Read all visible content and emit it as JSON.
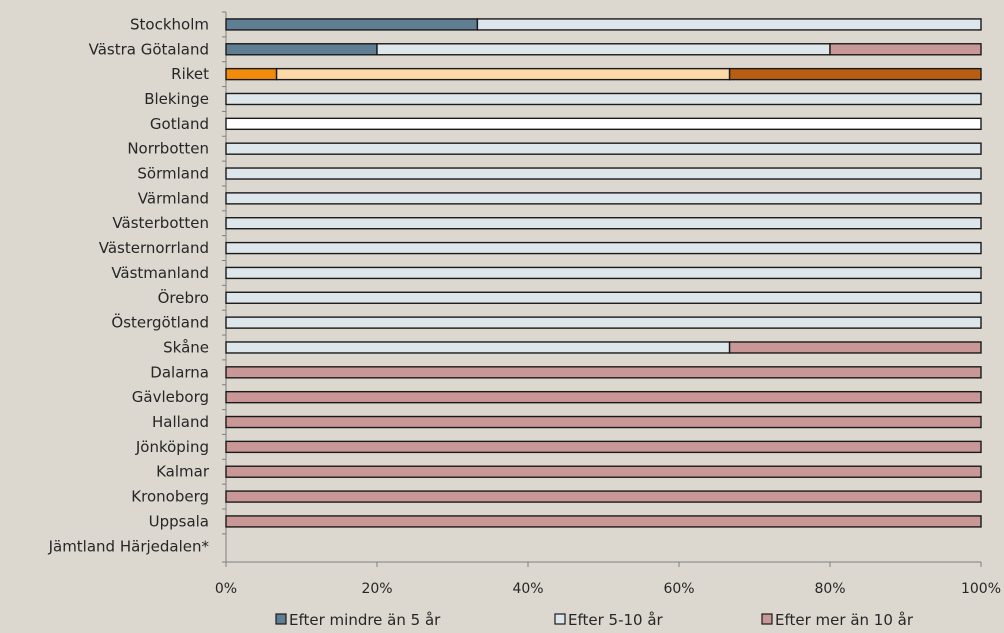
{
  "chart_data": {
    "type": "bar",
    "orientation": "horizontal",
    "stacked": true,
    "normalized": true,
    "title": "",
    "xlabel": "",
    "ylabel": "",
    "xlim": [
      0,
      100
    ],
    "x_ticks": [
      "0%",
      "20%",
      "40%",
      "60%",
      "80%",
      "100%"
    ],
    "grid": false,
    "legend_position": "bottom",
    "categories": [
      "Stockholm",
      "Västra Götaland",
      "Riket",
      "Blekinge",
      "Gotland",
      "Norrbotten",
      "Sörmland",
      "Värmland",
      "Västerbotten",
      "Västernorrland",
      "Västmanland",
      "Örebro",
      "Östergötland",
      "Skåne",
      "Dalarna",
      "Gävleborg",
      "Halland",
      "Jönköping",
      "Kalmar",
      "Kronoberg",
      "Uppsala",
      "Jämtland Härjedalen*"
    ],
    "series": [
      {
        "name": "Efter mindre  än 5 år",
        "color": "#5f7d93",
        "values": [
          33.3,
          20,
          6.7,
          0,
          0,
          0,
          0,
          0,
          0,
          0,
          0,
          0,
          0,
          0,
          0,
          0,
          0,
          0,
          0,
          0,
          0,
          0
        ]
      },
      {
        "name": "Efter  5-10 år",
        "color": "#dde6ea",
        "values": [
          66.7,
          60,
          60,
          100,
          100,
          100,
          100,
          100,
          100,
          100,
          100,
          100,
          100,
          66.7,
          0,
          0,
          0,
          0,
          0,
          0,
          0,
          0
        ]
      },
      {
        "name": "Efter mer  än 10 år",
        "color": "#c99896",
        "values": [
          0,
          20,
          33.3,
          0,
          0,
          0,
          0,
          0,
          0,
          0,
          0,
          0,
          0,
          33.3,
          100,
          100,
          100,
          100,
          100,
          100,
          100,
          0
        ]
      }
    ],
    "highlight": {
      "category": "Riket",
      "colors": [
        "#f28b0c",
        "#fcd9a8",
        "#b85e12"
      ]
    },
    "bar_stroke_color": "#1a1a1a",
    "gotland_bar_fill": "#ffffff"
  }
}
